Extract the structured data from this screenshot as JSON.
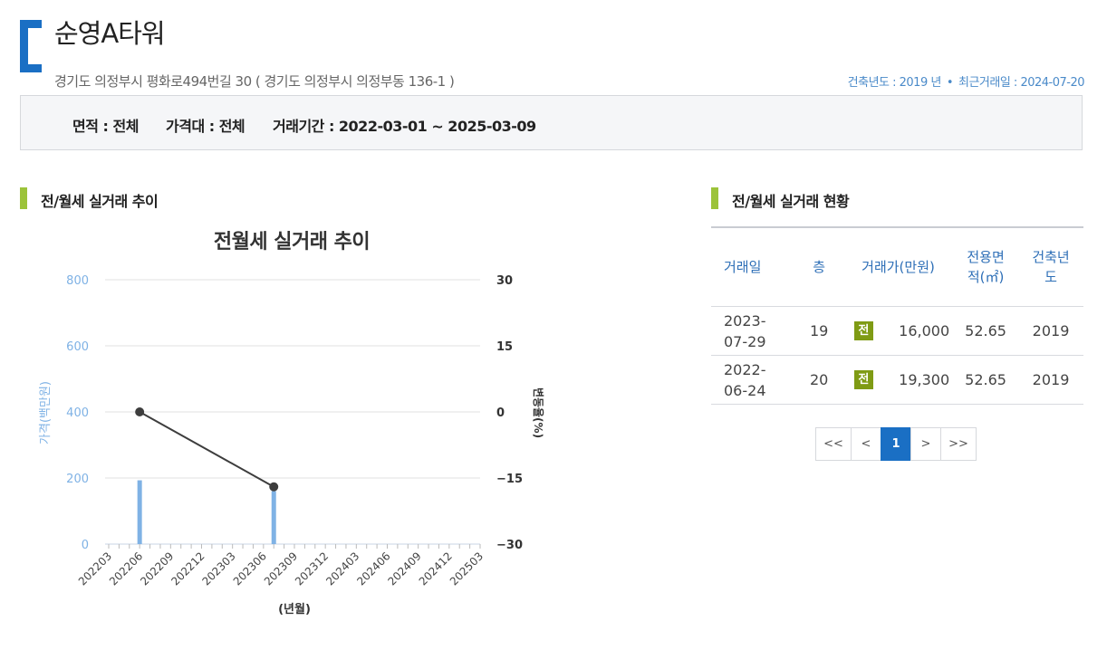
{
  "header": {
    "title": "순영A타워",
    "address": "경기도 의정부시 평화로494번길 30 ( 경기도 의정부시 의정부동 136-1 )",
    "build_year": "건축년도 : 2019 년",
    "dot": "•",
    "last_trade": "최근거래일 : 2024-07-20"
  },
  "filters": {
    "area": "면적 :  전체",
    "price": "가격대 :  전체",
    "period": "거래기간 :  2022-03-01 ~ 2025-03-09"
  },
  "left_section": {
    "title": "전/월세 실거래 추이"
  },
  "right_section": {
    "title": "전/월세 실거래 현황"
  },
  "chart_data": {
    "type": "bar",
    "title": "전월세 실거래 추이",
    "xlabel": "(년월)",
    "ylabel": "가격(백만원)",
    "y2label": "변동율(%)",
    "categories": [
      "202203",
      "202206",
      "202209",
      "202212",
      "202303",
      "202306",
      "202309",
      "202312",
      "202403",
      "202406",
      "202409",
      "202412",
      "202503"
    ],
    "x_months": [
      "202203",
      "202204",
      "202205",
      "202206",
      "202207",
      "202208",
      "202209",
      "202210",
      "202211",
      "202212",
      "202301",
      "202302",
      "202303",
      "202304",
      "202305",
      "202306",
      "202307",
      "202308",
      "202309",
      "202310",
      "202311",
      "202312",
      "202401",
      "202402",
      "202403",
      "202404",
      "202405",
      "202406",
      "202407",
      "202408",
      "202409",
      "202410",
      "202411",
      "202412",
      "202501",
      "202502",
      "202503"
    ],
    "ylim": [
      0,
      800
    ],
    "y_ticks": [
      "0",
      "200",
      "400",
      "600",
      "800"
    ],
    "y2lim": [
      -30,
      30
    ],
    "y2_ticks": [
      "−30",
      "−15",
      "0",
      "15",
      "30"
    ],
    "bars": [
      {
        "month": "202206",
        "value": 193
      },
      {
        "month": "202307",
        "value": 160
      }
    ],
    "line": [
      {
        "month": "202206",
        "value": 0
      },
      {
        "month": "202307",
        "value": -17
      }
    ],
    "colors": {
      "bar": "#7fb2e5",
      "line": "#3d3d3d",
      "axis_left": "#7fb2e5",
      "grid": "#e1e1e1"
    }
  },
  "table": {
    "headers": {
      "date": "거래일",
      "floor": "층",
      "price": "거래가(만원)",
      "area_1": "전용면",
      "area_2": "적(㎡)",
      "year_1": "건축년",
      "year_2": "도"
    },
    "rows": [
      {
        "date_1": "2023-",
        "date_2": "07-29",
        "floor": "19",
        "type": "전",
        "price": "16,000",
        "area": "52.65",
        "year": "2019"
      },
      {
        "date_1": "2022-",
        "date_2": "06-24",
        "floor": "20",
        "type": "전",
        "price": "19,300",
        "area": "52.65",
        "year": "2019"
      }
    ]
  },
  "pagination": {
    "first": "<<",
    "prev": "<",
    "current": "1",
    "next": ">",
    "last": ">>"
  }
}
